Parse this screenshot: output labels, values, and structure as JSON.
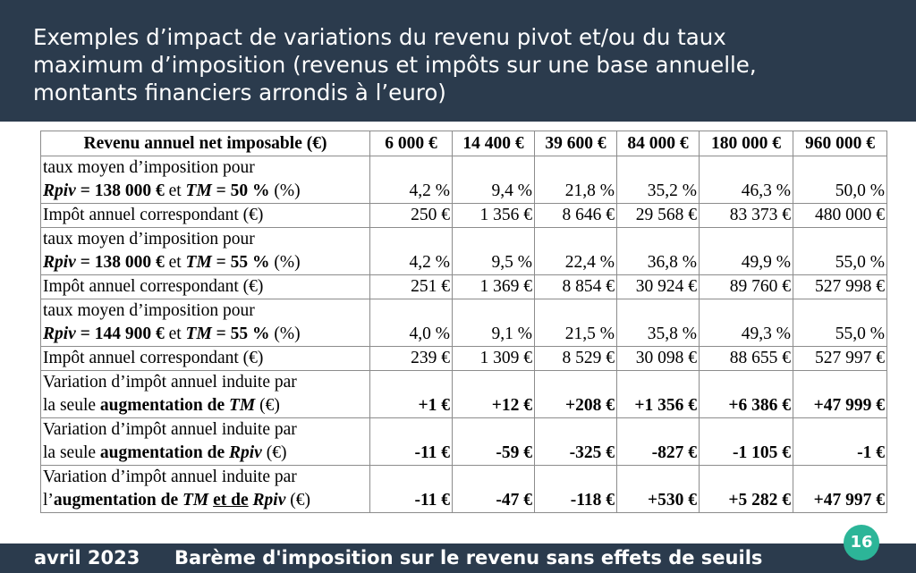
{
  "header": {
    "title_lines": [
      "Exemples d’impact de variations du revenu pivot et/ou du taux",
      "maximum d’imposition (revenus et impôts sur une base annuelle,",
      "montants financiers arrondis à l’euro)"
    ]
  },
  "table": {
    "columns": [
      "Revenu annuel net imposable (€)",
      "6 000 €",
      "14 400 €",
      "39 600 €",
      "84 000 €",
      "180 000 €",
      "960 000 €"
    ],
    "rows": [
      {
        "label": {
          "line1": "taux moyen d’imposition pour",
          "rpiv": "Rpiv",
          "rpiv_value": " = 138 000 €",
          "conj": " et ",
          "tm": "TM",
          "tm_value": " = 50 %",
          "unit": " (%)"
        },
        "values": [
          "4,2 %",
          "9,4 %",
          "21,8 %",
          "35,2 %",
          "46,3 %",
          "50,0 %"
        ]
      },
      {
        "label": "Impôt annuel correspondant (€)",
        "values": [
          "250 €",
          "1 356 €",
          "8 646 €",
          "29 568 €",
          "83 373 €",
          "480 000 €"
        ]
      },
      {
        "label": {
          "line1": "taux moyen d’imposition pour",
          "rpiv": "Rpiv",
          "rpiv_value": " = 138 000 €",
          "conj": " et ",
          "tm": "TM",
          "tm_value": " = 55 %",
          "unit": " (%)"
        },
        "values": [
          "4,2 %",
          "9,5 %",
          "22,4 %",
          "36,8 %",
          "49,9 %",
          "55,0 %"
        ]
      },
      {
        "label": "Impôt annuel correspondant (€)",
        "values": [
          "251 €",
          "1 369 €",
          "8 854 €",
          "30 924 €",
          "89 760 €",
          "527 998 €"
        ]
      },
      {
        "label": {
          "line1": "taux moyen d’imposition pour",
          "rpiv": "Rpiv",
          "rpiv_value": " = 144 900 €",
          "conj": " et ",
          "tm": "TM",
          "tm_value": " = 55 %",
          "unit": " (%)"
        },
        "values": [
          "4,0 %",
          "9,1 %",
          "21,5 %",
          "35,8 %",
          "49,3 %",
          "55,0 %"
        ]
      },
      {
        "label": "Impôt annuel correspondant (€)",
        "values": [
          "239 €",
          "1 309 €",
          "8 529 €",
          "30 098 €",
          "88 655 €",
          "527 997 €"
        ]
      },
      {
        "label": {
          "line1": "Variation d’impôt annuel induite par",
          "prefix": "la seule ",
          "bold": "augmentation de ",
          "var": "TM",
          "unit": " (€)"
        },
        "values": [
          "+1 €",
          "+12 €",
          "+208 €",
          "+1 356 €",
          "+6 386 €",
          "+47 999 €"
        ]
      },
      {
        "label": {
          "line1": "Variation d’impôt annuel induite par",
          "prefix": "la seule ",
          "bold": "augmentation de ",
          "var": "Rpiv",
          "unit": " (€)"
        },
        "values": [
          "-11 €",
          "-59 €",
          "-325 €",
          "-827 €",
          "-1 105 €",
          "-1 €"
        ]
      },
      {
        "label": {
          "line1": "Variation d’impôt annuel induite par",
          "prefix": "l’",
          "bold": "augmentation de ",
          "var1": "TM",
          "conj": "et de",
          "var2": "Rpiv",
          "unit": " (€)"
        },
        "values": [
          "-11 €",
          "-47 €",
          "-118 €",
          "+530 €",
          "+5 282 €",
          "+47 997 €"
        ]
      }
    ]
  },
  "footer": {
    "date": "avril 2023",
    "title": "Barème d'imposition sur le revenu sans effets de seuils",
    "page_number": "16"
  }
}
